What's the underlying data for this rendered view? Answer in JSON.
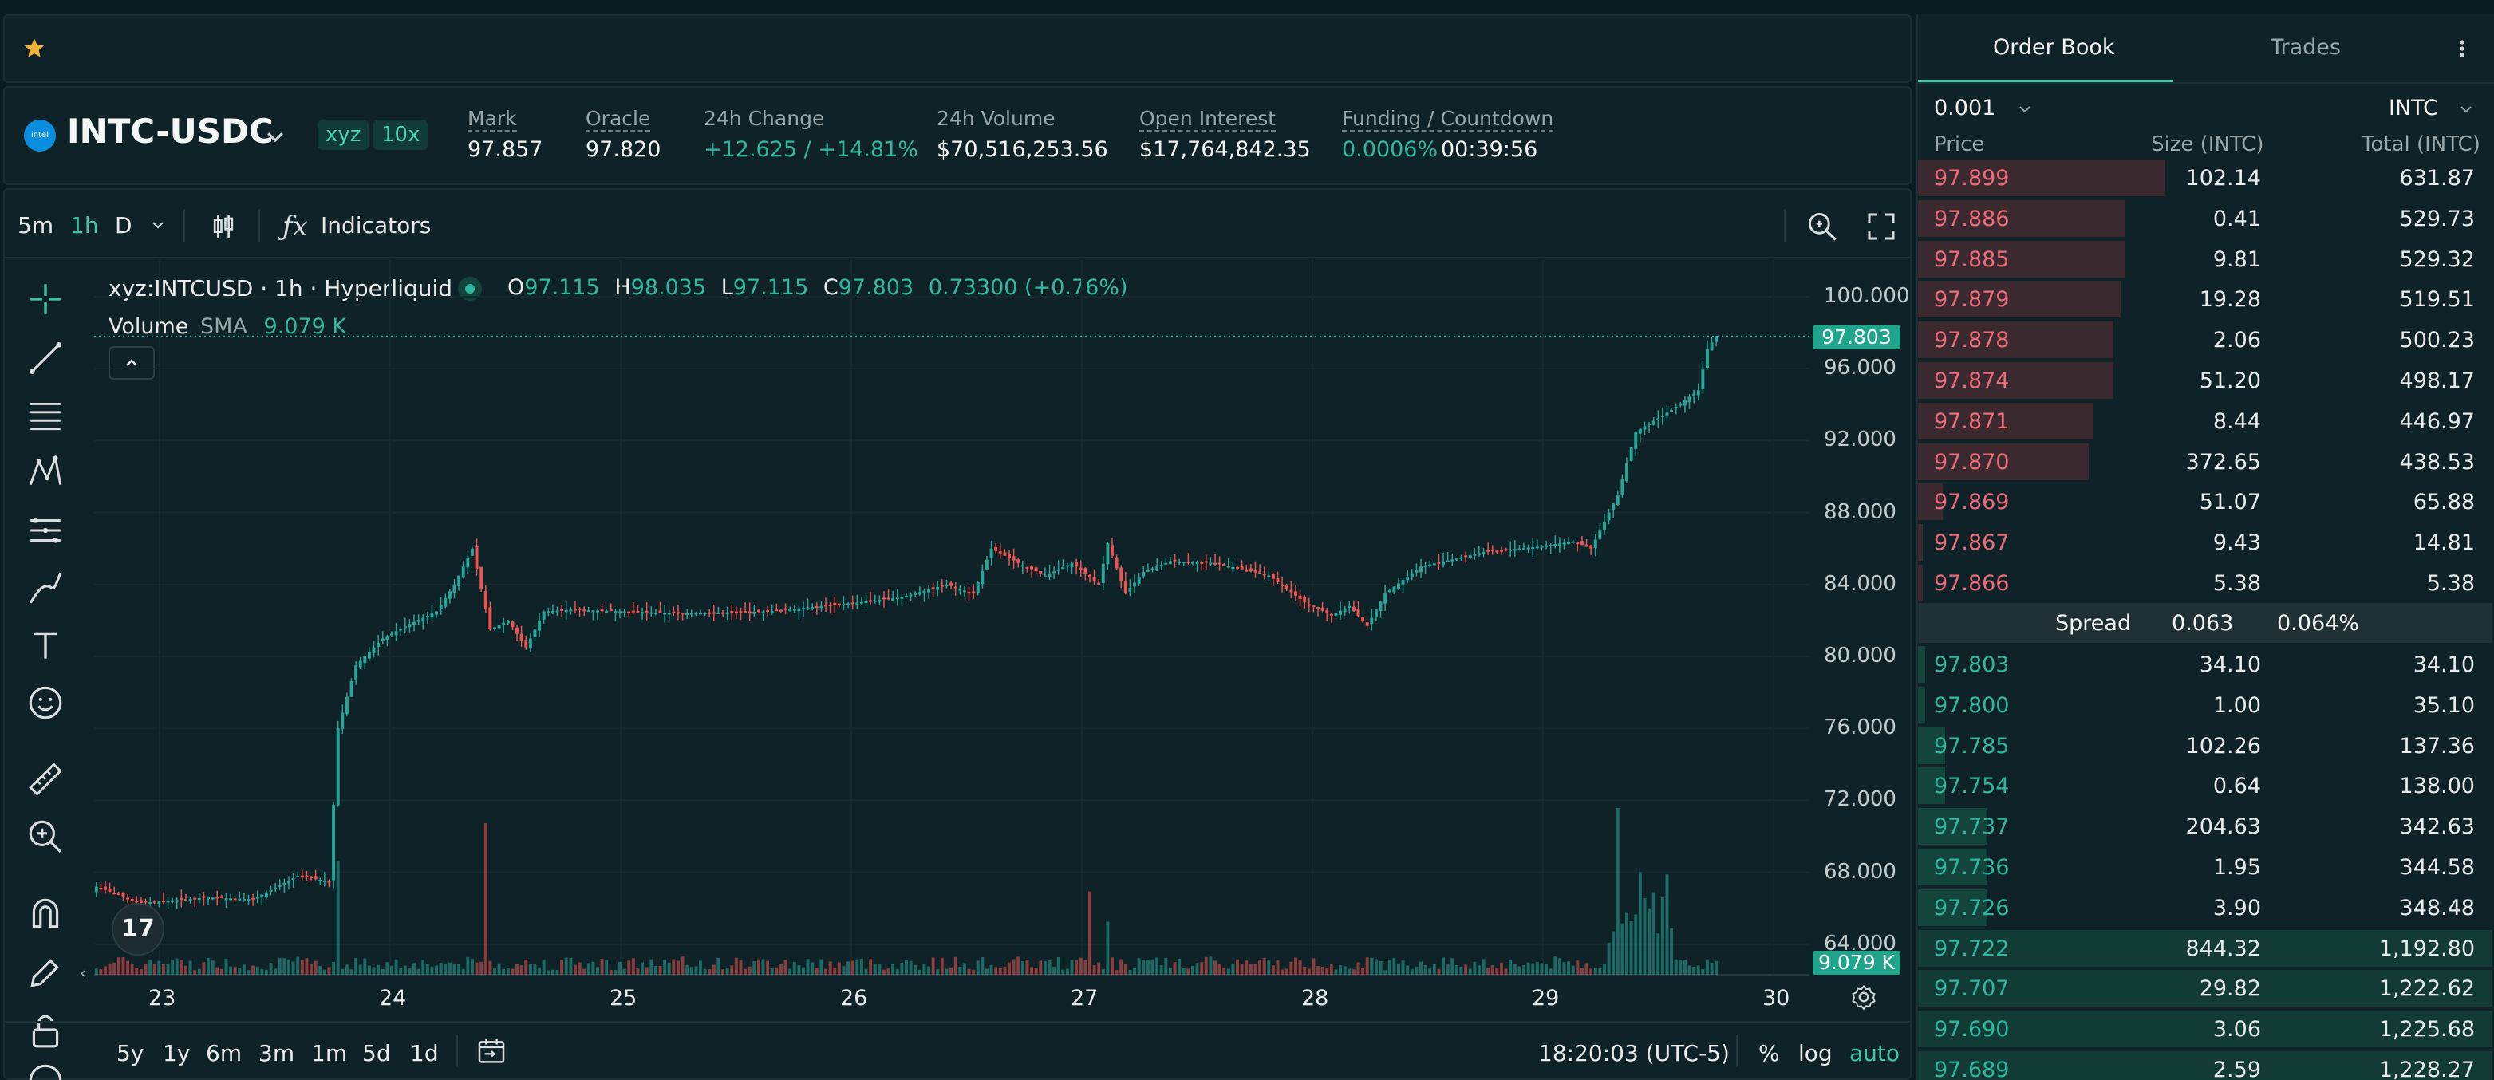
{
  "header": {
    "pair": "INTC-USDC",
    "logo_text": "intel",
    "badge_dex": "xyz",
    "badge_leverage": "10x",
    "stats": [
      {
        "label": "Mark",
        "value": "97.857"
      },
      {
        "label": "Oracle",
        "value": "97.820"
      },
      {
        "label": "24h Change",
        "value": "+12.625 / +14.81%"
      },
      {
        "label": "24h Volume",
        "value": "$70,516,253.56"
      },
      {
        "label": "Open Interest",
        "value": "$17,764,842.35"
      },
      {
        "label": "Funding / Countdown",
        "value": "0.0006%",
        "value2": "00:39:56"
      }
    ]
  },
  "toolbar": {
    "intervals": [
      "5m",
      "1h",
      "D"
    ],
    "active_interval": "1h",
    "indicators_label": "Indicators"
  },
  "legend": {
    "symbol": "xyz:INTCUSD · 1h · Hyperliquid",
    "o_label": "O",
    "o_value": "97.115",
    "h_label": "H",
    "h_value": "98.035",
    "l_label": "L",
    "l_value": "97.115",
    "c_label": "C",
    "c_value": "97.803",
    "change": "0.73300 (+0.76%)",
    "volume_label": "Volume",
    "sma_label": "SMA",
    "sma_value": "9.079 K"
  },
  "price_axis": {
    "labels": [
      "100.000",
      "96.000",
      "92.000",
      "88.000",
      "84.000",
      "80.000",
      "76.000",
      "72.000",
      "68.000",
      "64.000"
    ],
    "last_price_tag": "97.803",
    "volume_tag": "9.079 K"
  },
  "time_axis": {
    "labels": [
      "23",
      "24",
      "25",
      "26",
      "27",
      "28",
      "29",
      "30"
    ]
  },
  "bottom_bar": {
    "ranges": [
      "5y",
      "1y",
      "6m",
      "3m",
      "1m",
      "5d",
      "1d"
    ],
    "clock": "18:20:03 (UTC-5)",
    "percent": "%",
    "log": "log",
    "auto": "auto"
  },
  "chart_data": {
    "type": "candlestick",
    "symbol": "xyz:INTCUSD",
    "interval": "1h",
    "ylim": [
      62,
      102
    ],
    "x_ticks": [
      "23",
      "24",
      "25",
      "26",
      "27",
      "28",
      "29",
      "30"
    ],
    "last_candle": {
      "open": 97.115,
      "high": 98.035,
      "low": 97.115,
      "close": 97.803
    },
    "volume_sma": "9.079 K",
    "colors": {
      "up": "#26a69a",
      "down": "#ef5350"
    }
  },
  "order_book": {
    "tabs": [
      "Order Book",
      "Trades"
    ],
    "active_tab": "Order Book",
    "tick_size": "0.001",
    "size_unit": "INTC",
    "columns": [
      "Price",
      "Size (INTC)",
      "Total (INTC)"
    ],
    "asks": [
      {
        "price": "97.899",
        "size": "102.14",
        "total": "631.87",
        "depth": 1.0
      },
      {
        "price": "97.886",
        "size": "0.41",
        "total": "529.73",
        "depth": 0.84
      },
      {
        "price": "97.885",
        "size": "9.81",
        "total": "529.32",
        "depth": 0.84
      },
      {
        "price": "97.879",
        "size": "19.28",
        "total": "519.51",
        "depth": 0.82
      },
      {
        "price": "97.878",
        "size": "2.06",
        "total": "500.23",
        "depth": 0.79
      },
      {
        "price": "97.874",
        "size": "51.20",
        "total": "498.17",
        "depth": 0.79
      },
      {
        "price": "97.871",
        "size": "8.44",
        "total": "446.97",
        "depth": 0.71
      },
      {
        "price": "97.870",
        "size": "372.65",
        "total": "438.53",
        "depth": 0.69
      },
      {
        "price": "97.869",
        "size": "51.07",
        "total": "65.88",
        "depth": 0.1
      },
      {
        "price": "97.867",
        "size": "9.43",
        "total": "14.81",
        "depth": 0.02
      },
      {
        "price": "97.866",
        "size": "5.38",
        "total": "5.38",
        "depth": 0.01
      }
    ],
    "spread_label": "Spread",
    "spread_value": "0.063",
    "spread_pct": "0.064%",
    "bids": [
      {
        "price": "97.803",
        "size": "34.10",
        "total": "34.10",
        "depth": 0.03
      },
      {
        "price": "97.800",
        "size": "1.00",
        "total": "35.10",
        "depth": 0.03
      },
      {
        "price": "97.785",
        "size": "102.26",
        "total": "137.36",
        "depth": 0.11
      },
      {
        "price": "97.754",
        "size": "0.64",
        "total": "138.00",
        "depth": 0.11
      },
      {
        "price": "97.737",
        "size": "204.63",
        "total": "342.63",
        "depth": 0.28
      },
      {
        "price": "97.736",
        "size": "1.95",
        "total": "344.58",
        "depth": 0.28
      },
      {
        "price": "97.726",
        "size": "3.90",
        "total": "348.48",
        "depth": 0.28
      },
      {
        "price": "97.722",
        "size": "844.32",
        "total": "1,192.80",
        "depth": 0.97
      },
      {
        "price": "97.707",
        "size": "29.82",
        "total": "1,222.62",
        "depth": 0.99
      },
      {
        "price": "97.690",
        "size": "3.06",
        "total": "1,225.68",
        "depth": 1.0
      },
      {
        "price": "97.689",
        "size": "2.59",
        "total": "1,228.27",
        "depth": 1.0
      }
    ]
  },
  "colors": {
    "accent": "#3ec6a8",
    "ask": "#ec6c7a",
    "bid": "#2fb8a0",
    "background": "#0b1c20"
  }
}
